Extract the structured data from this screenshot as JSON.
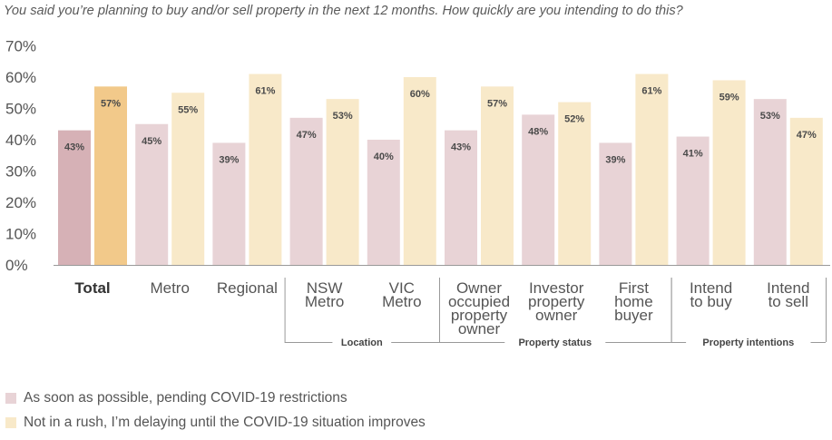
{
  "chart_data": {
    "type": "bar",
    "title": "You said you’re planning to buy and/or sell property in the next 12 months. How quickly are you intending to do this?",
    "ylim": [
      0,
      70
    ],
    "yticks": [
      0,
      10,
      20,
      30,
      40,
      50,
      60,
      70
    ],
    "ytick_labels": [
      "0%",
      "10%",
      "20%",
      "30%",
      "40%",
      "50%",
      "60%",
      "70%"
    ],
    "categories": [
      [
        "Total"
      ],
      [
        "Metro"
      ],
      [
        "Regional"
      ],
      [
        "NSW",
        "Metro"
      ],
      [
        "VIC",
        "Metro"
      ],
      [
        "Owner",
        "occupied",
        "property",
        "owner"
      ],
      [
        "Investor",
        "property",
        "owner"
      ],
      [
        "First",
        "home",
        "buyer"
      ],
      [
        "Intend",
        "to buy"
      ],
      [
        "Intend",
        "to sell"
      ]
    ],
    "series": [
      {
        "name": "As soon as possible, pending COVID-19 restrictions",
        "values": [
          43,
          45,
          39,
          47,
          40,
          43,
          48,
          39,
          41,
          53
        ],
        "labels": [
          "43%",
          "45%",
          "39%",
          "47%",
          "40%",
          "43%",
          "48%",
          "39%",
          "41%",
          "53%"
        ]
      },
      {
        "name": "Not in a rush, I’m delaying until the COVID-19 situation improves",
        "values": [
          57,
          55,
          61,
          53,
          60,
          57,
          52,
          61,
          59,
          47
        ],
        "labels": [
          "57%",
          "55%",
          "61%",
          "53%",
          "60%",
          "57%",
          "52%",
          "61%",
          "59%",
          "47%"
        ]
      }
    ],
    "groups": [
      {
        "label": "Location",
        "from": 3,
        "to": 4
      },
      {
        "label": "Property status",
        "from": 5,
        "to": 7
      },
      {
        "label": "Property intentions",
        "from": 8,
        "to": 9
      }
    ],
    "colors": {
      "series1": "#e8d3d6",
      "series2": "#f8e9c9",
      "series1_total": "#d6b1b6",
      "series2_total": "#f2c98a",
      "axis": "#999999",
      "text": "#555555",
      "bar_label": "#4a4a4a"
    },
    "grid": false,
    "legend_position": "bottom-left"
  }
}
